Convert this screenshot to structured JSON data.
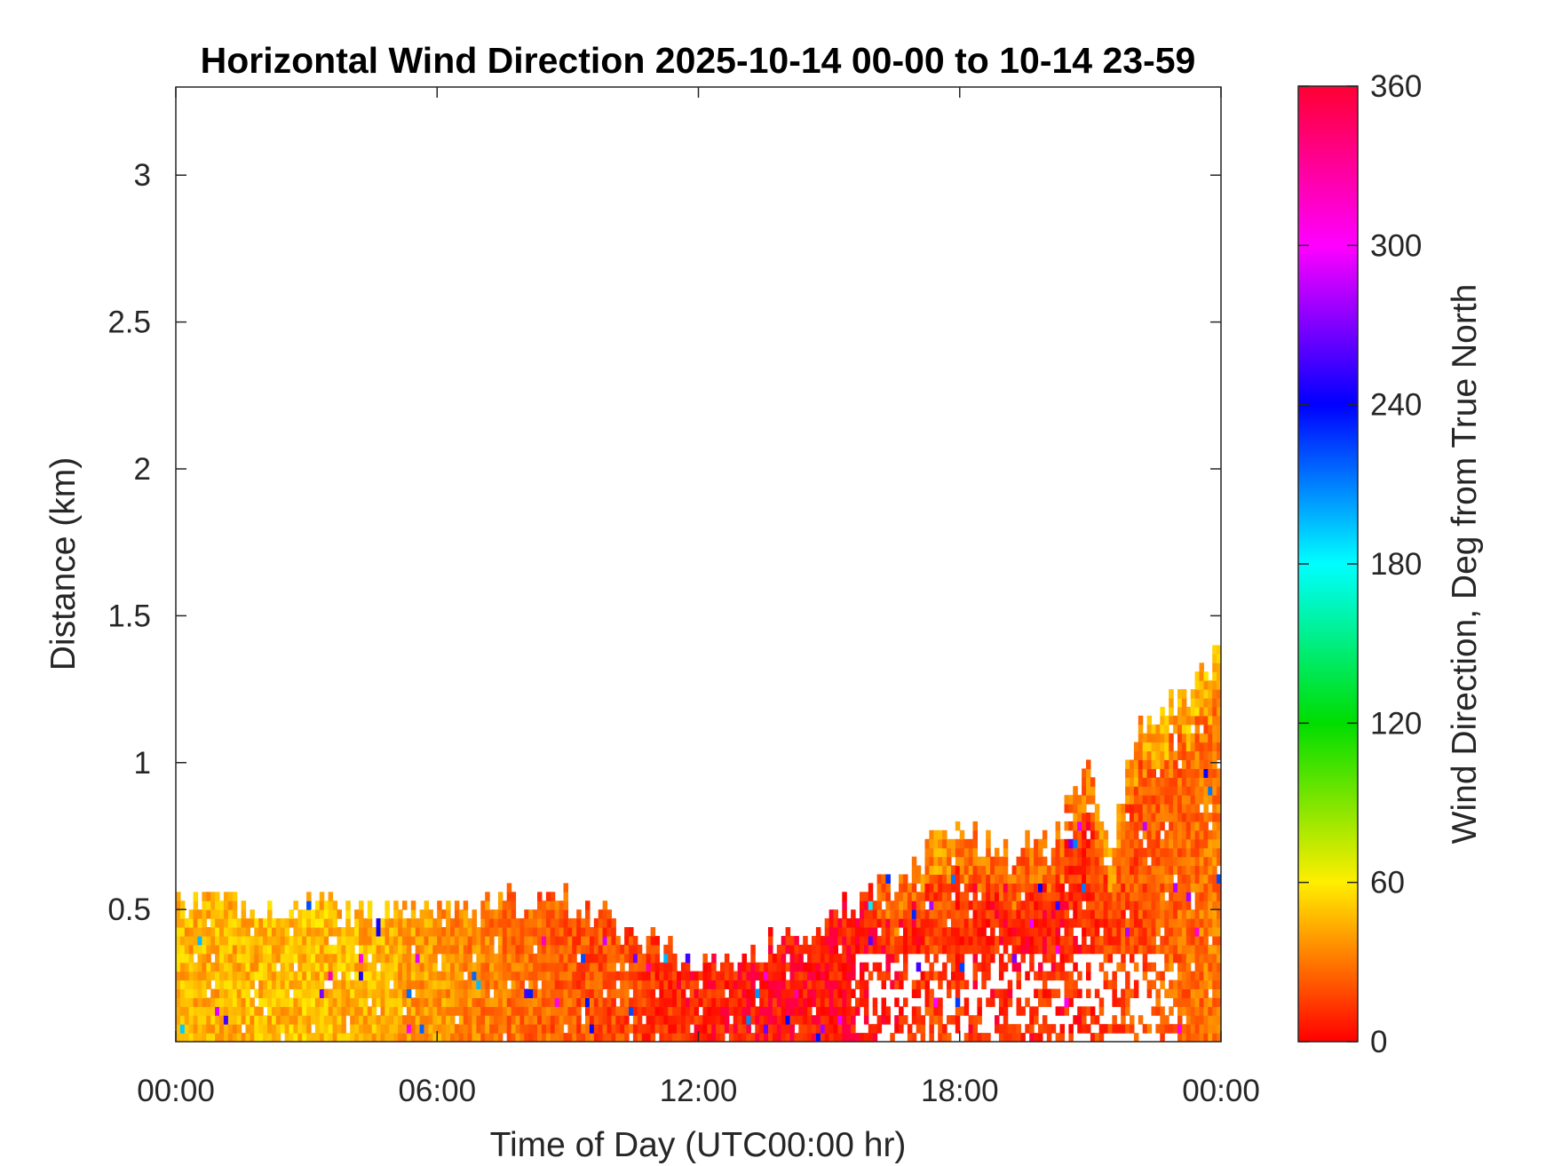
{
  "chart_data": {
    "type": "heatmap",
    "title": "Horizontal Wind Direction 2025-10-14 00-00 to 10-14 23-59",
    "xlabel": "Time of Day (UTC00:00 hr)",
    "ylabel": "Distance (km)",
    "x_ticks": [
      {
        "value": 0,
        "label": "00:00"
      },
      {
        "value": 6,
        "label": "06:00"
      },
      {
        "value": 12,
        "label": "12:00"
      },
      {
        "value": 18,
        "label": "18:00"
      },
      {
        "value": 24,
        "label": "00:00"
      }
    ],
    "y_ticks": [
      {
        "value": 0.5,
        "label": "0.5"
      },
      {
        "value": 1,
        "label": "1"
      },
      {
        "value": 1.5,
        "label": "1.5"
      },
      {
        "value": 2,
        "label": "2"
      },
      {
        "value": 2.5,
        "label": "2.5"
      },
      {
        "value": 3,
        "label": "3"
      }
    ],
    "xlim": [
      0,
      24
    ],
    "ylim": [
      0.05,
      3.3
    ],
    "colorbar": {
      "label": "Wind Direction, Deg from True North",
      "range": [
        0,
        360
      ],
      "ticks": [
        "0",
        "60",
        "120",
        "180",
        "240",
        "300",
        "360"
      ],
      "stops": [
        {
          "value": 0,
          "color": "#ff0000"
        },
        {
          "value": 60,
          "color": "#ffee00"
        },
        {
          "value": 120,
          "color": "#00dd00"
        },
        {
          "value": 180,
          "color": "#00ffff"
        },
        {
          "value": 240,
          "color": "#0000ff"
        },
        {
          "value": 300,
          "color": "#ff00ff"
        },
        {
          "value": 360,
          "color": "#ff0033"
        }
      ]
    },
    "data_extent": {
      "description_hours": [
        0,
        1.5,
        3,
        4.5,
        6,
        7.5,
        9,
        10.5,
        11.5,
        12.5,
        13.5,
        15,
        16,
        17,
        17.5,
        18,
        19,
        20,
        21,
        21.5,
        22,
        22.5,
        23,
        23.5,
        24
      ],
      "top_km": [
        0.5,
        0.5,
        0.5,
        0.48,
        0.48,
        0.5,
        0.52,
        0.42,
        0.33,
        0.32,
        0.36,
        0.45,
        0.55,
        0.62,
        0.72,
        0.75,
        0.68,
        0.7,
        0.95,
        0.7,
        1.05,
        1.15,
        1.2,
        1.25,
        1.4
      ],
      "direction_deg": [
        45,
        45,
        48,
        45,
        38,
        30,
        22,
        18,
        10,
        8,
        6,
        5,
        6,
        10,
        20,
        12,
        8,
        8,
        12,
        18,
        18,
        25,
        25,
        28,
        30
      ]
    }
  }
}
